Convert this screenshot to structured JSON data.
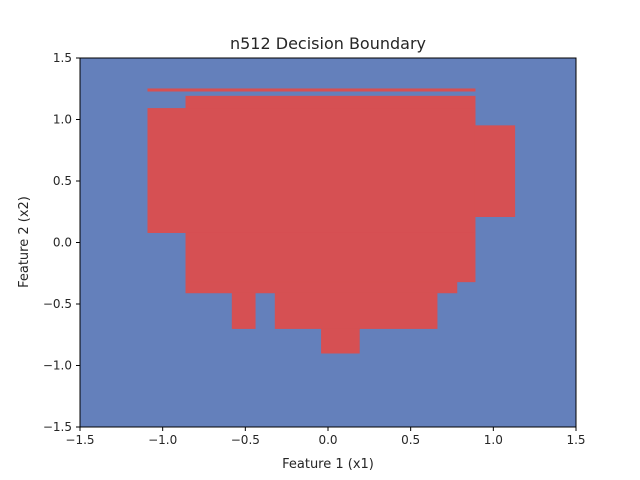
{
  "chart_data": {
    "type": "heatmap",
    "title": "n512 Decision Boundary",
    "xlabel": "Feature 1 (x1)",
    "ylabel": "Feature 2 (x2)",
    "xlim": [
      -1.5,
      1.5
    ],
    "ylim": [
      -1.5,
      1.5
    ],
    "xticks": [
      -1.5,
      -1.0,
      -0.5,
      0.0,
      0.5,
      1.0,
      1.5
    ],
    "yticks": [
      -1.5,
      -1.0,
      -0.5,
      0.0,
      0.5,
      1.0,
      1.5
    ],
    "xtick_labels": [
      "−1.5",
      "−1.0",
      "−0.5",
      "0.0",
      "0.5",
      "1.0",
      "1.5"
    ],
    "ytick_labels": [
      "−1.5",
      "−1.0",
      "−0.5",
      "0.0",
      "0.5",
      "1.0",
      "1.5"
    ],
    "grid": false,
    "background_class_color": "#6480bb",
    "region_class_color": "#d65053",
    "regions": [
      {
        "class": 1,
        "x": [
          -1.09,
          0.89
        ],
        "y": [
          1.23,
          1.25
        ]
      },
      {
        "class": 1,
        "x": [
          -0.86,
          0.89
        ],
        "y": [
          0.95,
          1.19
        ]
      },
      {
        "class": 1,
        "x": [
          -1.09,
          0.89
        ],
        "y": [
          0.08,
          1.09
        ]
      },
      {
        "class": 1,
        "x": [
          0.89,
          1.13
        ],
        "y": [
          0.21,
          0.95
        ]
      },
      {
        "class": 1,
        "x": [
          -0.86,
          0.89
        ],
        "y": [
          -0.32,
          0.08
        ]
      },
      {
        "class": 1,
        "x": [
          -0.86,
          0.78
        ],
        "y": [
          -0.41,
          -0.32
        ]
      },
      {
        "class": 1,
        "x": [
          -0.58,
          -0.44
        ],
        "y": [
          -0.7,
          -0.41
        ]
      },
      {
        "class": 1,
        "x": [
          -0.32,
          0.66
        ],
        "y": [
          -0.7,
          -0.41
        ]
      },
      {
        "class": 1,
        "x": [
          -0.04,
          0.19
        ],
        "y": [
          -0.9,
          -0.7
        ]
      }
    ]
  }
}
